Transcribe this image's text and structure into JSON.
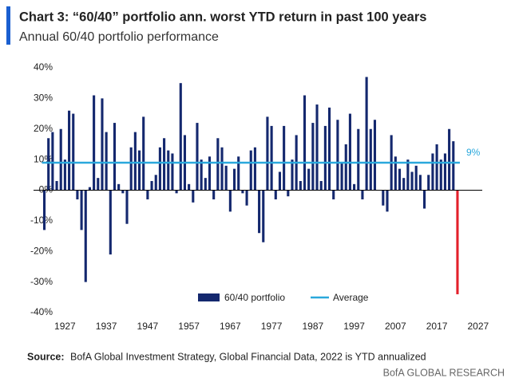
{
  "chart_data": {
    "type": "bar",
    "title": "Chart 3: “60/40” portfolio ann. worst YTD return in past 100 years",
    "subtitle": "Annual 60/40 portfolio performance",
    "x": [
      1922,
      1923,
      1924,
      1925,
      1926,
      1927,
      1928,
      1929,
      1930,
      1931,
      1932,
      1933,
      1934,
      1935,
      1936,
      1937,
      1938,
      1939,
      1940,
      1941,
      1942,
      1943,
      1944,
      1945,
      1946,
      1947,
      1948,
      1949,
      1950,
      1951,
      1952,
      1953,
      1954,
      1955,
      1956,
      1957,
      1958,
      1959,
      1960,
      1961,
      1962,
      1963,
      1964,
      1965,
      1966,
      1967,
      1968,
      1969,
      1970,
      1971,
      1972,
      1973,
      1974,
      1975,
      1976,
      1977,
      1978,
      1979,
      1980,
      1981,
      1982,
      1983,
      1984,
      1985,
      1986,
      1987,
      1988,
      1989,
      1990,
      1991,
      1992,
      1993,
      1994,
      1995,
      1996,
      1997,
      1998,
      1999,
      2000,
      2001,
      2002,
      2003,
      2004,
      2005,
      2006,
      2007,
      2008,
      2009,
      2010,
      2011,
      2012,
      2013,
      2014,
      2015,
      2016,
      2017,
      2018,
      2019,
      2020,
      2021,
      2022
    ],
    "series": [
      {
        "name": "60/40 portfolio",
        "color": "#14286e",
        "highlight_color": "#e3202b",
        "values": [
          -13,
          17,
          19,
          3,
          20,
          10,
          26,
          25,
          -3,
          -13,
          -30,
          1,
          31,
          4,
          30,
          19,
          -21,
          22,
          2,
          -1,
          -11,
          14,
          19,
          13,
          24,
          -3,
          3,
          5,
          14,
          17,
          13,
          12,
          -1,
          35,
          18,
          2,
          -4,
          22,
          10,
          4,
          11,
          -3,
          17,
          14,
          8,
          -7,
          7,
          11,
          -1,
          -5,
          13,
          14,
          -14,
          -17,
          24,
          21,
          -3,
          6,
          21,
          -2,
          10,
          18,
          3,
          31,
          7,
          22,
          28,
          3,
          21,
          27,
          -3,
          23,
          9,
          15,
          25,
          2,
          20,
          -3,
          37,
          20,
          23,
          0,
          -5,
          -7,
          18,
          11,
          7,
          4,
          10,
          6,
          8,
          5,
          -6,
          5,
          12,
          15,
          10,
          12,
          20,
          16,
          -34
        ]
      },
      {
        "name": "Average",
        "color": "#2aa8dc",
        "value": 9,
        "value_label": "9%"
      }
    ],
    "xlim": [
      1919,
      2028
    ],
    "xticks": [
      1927,
      1937,
      1947,
      1957,
      1967,
      1977,
      1987,
      1997,
      2007,
      2017,
      2027
    ],
    "ylim": [
      -40,
      40
    ],
    "yticks": [
      {
        "value": -40,
        "label": "-40%"
      },
      {
        "value": -30,
        "label": "-30%"
      },
      {
        "value": -20,
        "label": "-20%"
      },
      {
        "value": -10,
        "label": "-10%"
      },
      {
        "value": 0,
        "label": "0%"
      },
      {
        "value": 10,
        "label": "10%"
      },
      {
        "value": 20,
        "label": "20%"
      },
      {
        "value": 30,
        "label": "30%"
      },
      {
        "value": 40,
        "label": "40%"
      }
    ],
    "source_label": "Source:",
    "source": "BofA Global Investment Strategy, Global Financial Data, 2022  is YTD annualized",
    "footer": "BofA GLOBAL RESEARCH"
  }
}
